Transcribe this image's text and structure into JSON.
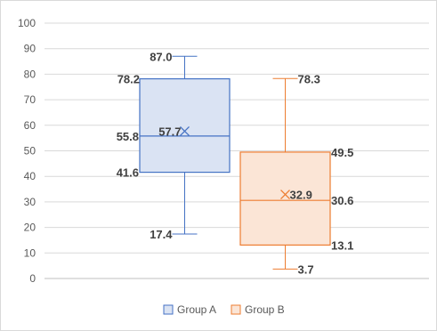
{
  "chart_data": {
    "type": "box",
    "title": "",
    "xlabel": "",
    "ylabel": "",
    "ylim": [
      0,
      100
    ],
    "yticks": [
      0,
      10,
      20,
      30,
      40,
      50,
      60,
      70,
      80,
      90,
      100
    ],
    "ytick_labels": [
      "0",
      "10",
      "20",
      "30",
      "40",
      "50",
      "60",
      "70",
      "80",
      "90",
      "100"
    ],
    "grid": true,
    "legend_position": "bottom",
    "series": [
      {
        "name": "Group A",
        "min": 17.4,
        "q1": 41.6,
        "median": 55.8,
        "q3": 78.2,
        "max": 87.0,
        "mean": 57.7,
        "labels": {
          "min": "17.4",
          "q1": "41.6",
          "median": "55.8",
          "q3": "78.2",
          "max": "87.0",
          "mean": "57.7"
        },
        "fill": "#dae3f3",
        "stroke": "#4472c4"
      },
      {
        "name": "Group B",
        "min": 3.7,
        "q1": 13.1,
        "median": 30.6,
        "q3": 49.5,
        "max": 78.3,
        "mean": 32.9,
        "labels": {
          "min": "3.7",
          "q1": "13.1",
          "median": "30.6",
          "q3": "49.5",
          "max": "78.3",
          "mean": "32.9"
        },
        "fill": "#fbe5d6",
        "stroke": "#ed7d31"
      }
    ]
  }
}
